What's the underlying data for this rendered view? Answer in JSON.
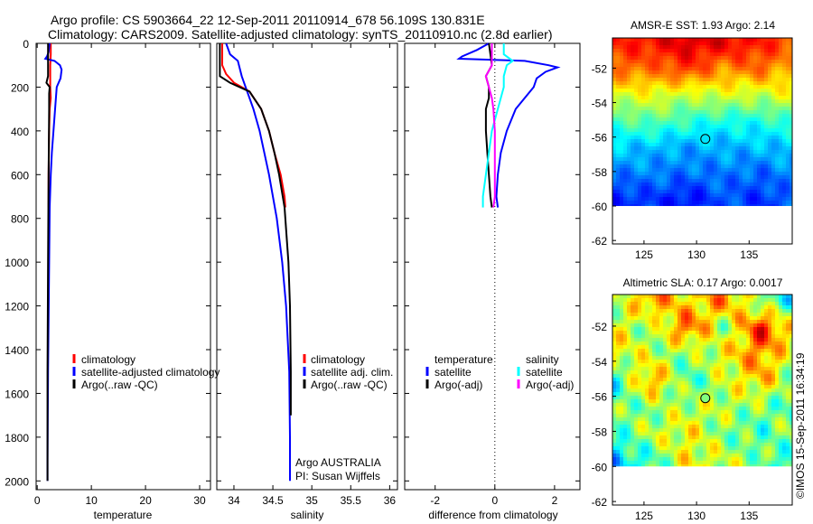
{
  "title": {
    "line1": "Argo profile: CS 5903664_22 12-Sep-2011 20110914_678 56.109S 130.831E",
    "line2": "Climatology: CARS2009. Satellite-adjusted climatology: synTS_20110910.nc (2.8d earlier)"
  },
  "credit": "©IMOS 15-Sep-2011 16:34:19",
  "annotation": [
    "Argo AUSTRALIA",
    "PI: Susan Wijffels"
  ],
  "colors": {
    "climatology": "#ff0000",
    "satellite": "#0000ff",
    "argo": "#000000",
    "sal_satellite": "#00ffff",
    "sal_argo": "#ff00ff"
  },
  "chart_data": [
    {
      "type": "line",
      "id": "temperature",
      "xlabel": "temperature",
      "ylabel": "",
      "xlim": [
        -0.2,
        32
      ],
      "ylim": [
        2040,
        0
      ],
      "xticks": [
        0,
        10,
        20,
        30
      ],
      "yticks": [
        0,
        200,
        400,
        600,
        800,
        1000,
        1200,
        1400,
        1600,
        1800,
        2000
      ],
      "legend": [
        "climatology",
        "satellite-adjusted climatology",
        "Argo(..raw -QC)"
      ],
      "series": [
        {
          "name": "climatology",
          "color": "#ff0000",
          "depth": [
            0,
            50,
            100,
            150,
            200,
            250,
            300,
            400,
            600,
            750
          ],
          "values": [
            2.5,
            2.5,
            2.4,
            2.4,
            2.4,
            2.5,
            2.3,
            2.2,
            2.1,
            2.1
          ]
        },
        {
          "name": "satellite-adjusted climatology",
          "color": "#0000ff",
          "depth": [
            0,
            40,
            60,
            70,
            80,
            100,
            120,
            160,
            200,
            300,
            400,
            500,
            600,
            750,
            1000,
            1500,
            1900,
            2000
          ],
          "values": [
            2.3,
            2.1,
            1.8,
            1.5,
            3.2,
            4.2,
            4.5,
            4.3,
            3.6,
            3.3,
            3.0,
            2.7,
            2.5,
            2.3,
            2.2,
            2.0,
            1.9,
            1.9
          ]
        },
        {
          "name": "Argo(..raw -QC)",
          "color": "#000000",
          "depth": [
            0,
            100,
            150,
            180,
            200,
            230,
            300,
            600,
            1000,
            1500,
            1900,
            2000
          ],
          "values": [
            2.0,
            2.0,
            2.0,
            1.7,
            2.3,
            2.2,
            2.2,
            2.1,
            2.0,
            1.9,
            1.9,
            1.9
          ]
        }
      ]
    },
    {
      "type": "line",
      "id": "salinity",
      "xlabel": "salinity",
      "xlim": [
        33.78,
        36.1
      ],
      "ylim": [
        2040,
        0
      ],
      "xticks": [
        34,
        34.5,
        35,
        35.5,
        36
      ],
      "legend": [
        "climatology",
        "satellite adj. clim.",
        "Argo(..raw -QC)"
      ],
      "series": [
        {
          "name": "climatology",
          "color": "#ff0000",
          "depth": [
            0,
            100,
            140,
            180,
            220,
            300,
            400,
            500,
            600,
            700,
            750
          ],
          "values": [
            33.85,
            33.85,
            33.9,
            34.0,
            34.2,
            34.35,
            34.45,
            34.52,
            34.6,
            34.65,
            34.66
          ]
        },
        {
          "name": "satellite adj. clim.",
          "color": "#0000ff",
          "depth": [
            0,
            50,
            80,
            150,
            200,
            300,
            400,
            600,
            800,
            1000,
            1200,
            1500,
            1800,
            2000
          ],
          "values": [
            33.9,
            33.95,
            34.05,
            34.1,
            34.15,
            34.25,
            34.33,
            34.45,
            34.55,
            34.62,
            34.67,
            34.71,
            34.72,
            34.72
          ]
        },
        {
          "name": "Argo(..raw -QC)",
          "color": "#000000",
          "depth": [
            0,
            100,
            150,
            180,
            220,
            300,
            400,
            500,
            600,
            750,
            1000,
            1200,
            1500,
            1700
          ],
          "values": [
            33.82,
            33.82,
            33.82,
            33.95,
            34.2,
            34.35,
            34.45,
            34.52,
            34.58,
            34.65,
            34.7,
            34.72,
            34.73,
            34.73
          ]
        }
      ]
    },
    {
      "type": "line",
      "id": "difference",
      "xlabel": "difference from climatology",
      "xlim": [
        -3.02,
        2.85
      ],
      "ylim": [
        2040,
        0
      ],
      "xticks": [
        -2,
        0,
        2
      ],
      "legend_temperature_title": "temperature",
      "legend_salinity_title": "salinity",
      "legend": [
        "satellite",
        "Argo(-adj)",
        "satellite",
        "Argo(-adj)"
      ],
      "series": [
        {
          "name": "temperature satellite",
          "color": "#0000ff",
          "depth": [
            0,
            30,
            60,
            70,
            80,
            100,
            110,
            130,
            160,
            200,
            300,
            400,
            500,
            600,
            700,
            750
          ],
          "values": [
            -0.2,
            -0.6,
            -1.1,
            -1.2,
            1.0,
            1.8,
            2.1,
            1.7,
            1.4,
            1.3,
            0.7,
            0.4,
            0.2,
            0.1,
            0.05,
            0.1
          ]
        },
        {
          "name": "temperature Argo(-adj)",
          "color": "#000000",
          "depth": [
            0,
            50,
            100,
            150,
            200,
            250,
            300,
            400,
            500,
            600,
            700,
            750
          ],
          "values": [
            -0.2,
            -0.15,
            -0.1,
            -0.3,
            -0.2,
            -0.2,
            -0.3,
            -0.3,
            -0.25,
            -0.2,
            -0.15,
            -0.1
          ]
        },
        {
          "name": "salinity satellite",
          "color": "#00ffff",
          "depth": [
            0,
            50,
            80,
            100,
            150,
            200,
            300,
            400,
            500,
            600,
            700,
            750
          ],
          "values": [
            0.3,
            0.3,
            0.6,
            0.4,
            0.3,
            0.3,
            0.1,
            -0.1,
            -0.2,
            -0.3,
            -0.4,
            -0.4
          ]
        },
        {
          "name": "salinity Argo(-adj)",
          "color": "#ff00ff",
          "depth": [
            0,
            50,
            100,
            150,
            200,
            250,
            300,
            400,
            500,
            600,
            700,
            750
          ],
          "values": [
            -0.1,
            -0.1,
            -0.1,
            -0.3,
            -0.2,
            -0.1,
            -0.05,
            0.0,
            0.0,
            0.0,
            0.0,
            -0.05
          ]
        }
      ]
    },
    {
      "type": "heatmap",
      "id": "sst",
      "title": "AMSR-E SST: 1.93 Argo: 2.14",
      "xlim": [
        122,
        139.1
      ],
      "ylim": [
        -62.2,
        -50.25
      ],
      "xticks": [
        125,
        130,
        135
      ],
      "yticks": [
        -52,
        -54,
        -56,
        -58,
        -60,
        -62
      ],
      "data_lat_range": [
        -60,
        -50.25
      ],
      "clim": [
        -1,
        8
      ],
      "marker": {
        "lon": 130.831,
        "lat": -56.109,
        "value": 2.14
      },
      "grid_lats": [
        -50.5,
        -52,
        -53.5,
        -55,
        -56.5,
        -58,
        -59.5
      ],
      "grid_lons": [
        122,
        125.5,
        129,
        132.5,
        136,
        139
      ],
      "values": [
        [
          6.5,
          6.8,
          7.2,
          7.0,
          6.6,
          6.2
        ],
        [
          6.0,
          5.8,
          6.4,
          5.5,
          6.0,
          5.0
        ],
        [
          4.2,
          4.5,
          4.0,
          4.3,
          4.0,
          4.6
        ],
        [
          3.0,
          3.2,
          2.8,
          2.5,
          2.6,
          2.9
        ],
        [
          2.0,
          1.8,
          1.6,
          1.7,
          1.8,
          1.9
        ],
        [
          1.2,
          1.3,
          1.1,
          1.2,
          1.0,
          1.4
        ],
        [
          0.4,
          0.6,
          0.2,
          0.9,
          0.5,
          1.0
        ]
      ]
    },
    {
      "type": "heatmap",
      "id": "sla",
      "title": "Altimetric SLA: 0.17 Argo: 0.0017",
      "xlim": [
        122,
        139.1
      ],
      "ylim": [
        -62.2,
        -50.2
      ],
      "xticks": [
        125,
        130,
        135
      ],
      "yticks": [
        -52,
        -54,
        -56,
        -58,
        -60,
        -62
      ],
      "data_lat_range": [
        -60,
        -50.2
      ],
      "clim": [
        -0.4,
        0.4
      ],
      "marker": {
        "lon": 130.831,
        "lat": -56.109,
        "value": 0.0017
      },
      "grid_lats": [
        -50.5,
        -52,
        -53.5,
        -55,
        -56.5,
        -58,
        -59.5
      ],
      "grid_lons": [
        122,
        125.5,
        129,
        132.5,
        136,
        139
      ],
      "values": [
        [
          0.0,
          0.2,
          0.1,
          0.2,
          0.0,
          -0.1
        ],
        [
          0.1,
          0.0,
          0.25,
          0.0,
          0.3,
          0.1
        ],
        [
          0.1,
          0.05,
          0.0,
          0.1,
          0.2,
          0.05
        ],
        [
          -0.1,
          0.2,
          -0.05,
          0.05,
          0.15,
          0.0
        ],
        [
          0.0,
          0.0,
          0.05,
          0.05,
          0.0,
          -0.05
        ],
        [
          -0.05,
          0.05,
          0.1,
          0.0,
          -0.05,
          0.05
        ],
        [
          -0.15,
          -0.05,
          0.1,
          0.05,
          0.0,
          -0.1
        ]
      ]
    }
  ]
}
